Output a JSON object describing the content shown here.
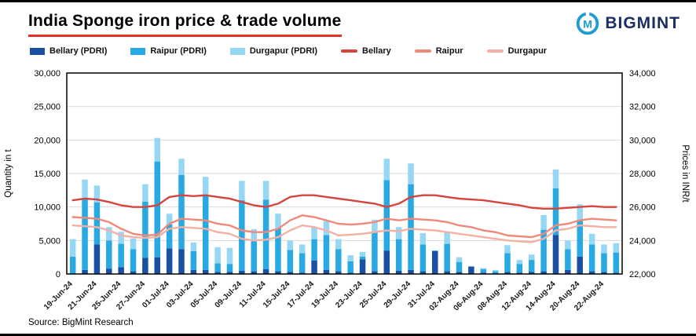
{
  "header": {
    "title": "India Sponge iron price & trade volume",
    "logo_text": "BIGMINT"
  },
  "source": "Source: BigMint Research",
  "colors": {
    "title_underline": "#e23328",
    "logo_teal": "#1e9cd0",
    "logo_navy": "#1b2f63",
    "gridline": "#d9d9d9",
    "plot_border": "#000000"
  },
  "chart_data": {
    "type": "combo",
    "title": "India Sponge iron price & trade volume",
    "grid": "horizontal",
    "legend_position": "top",
    "left_axis": {
      "title": "Quantity in t",
      "min": 0,
      "max": 30000,
      "step": 5000
    },
    "right_axis": {
      "title": "Prices in INR/t",
      "min": 22000,
      "max": 34000,
      "step": 2000
    },
    "tick_labels": [
      "19-Jun-24",
      "21-Jun-24",
      "25-Jun-24",
      "27-Jun-24",
      "01-Jul-24",
      "03-Jul-24",
      "05-Jul-24",
      "09-Jul-24",
      "11-Jul-24",
      "15-Jul-24",
      "17-Jul-24",
      "19-Jul-24",
      "23-Jul-24",
      "25-Jul-24",
      "29-Jul-24",
      "31-Jul-24",
      "02-Aug-24",
      "06-Aug-24",
      "08-Aug-24",
      "12-Aug-24",
      "14-Aug-24",
      "20-Aug-24",
      "22-Aug-24"
    ],
    "bars": {
      "stacked": true,
      "axis": "left",
      "series": [
        {
          "name": "Bellary (PDRI)",
          "color": "#1b4fa0",
          "values": [
            0,
            600,
            4400,
            800,
            1000,
            400,
            2400,
            2500,
            3800,
            3700,
            600,
            600,
            300,
            300,
            500,
            400,
            700,
            400,
            300,
            200,
            2000,
            600,
            400,
            200,
            2200,
            400,
            3500,
            500,
            600,
            400,
            3400,
            400,
            300,
            1100,
            200,
            100,
            300,
            200,
            300,
            400,
            5800,
            600,
            2600,
            400,
            300,
            200
          ]
        },
        {
          "name": "Raipur (PDRI)",
          "color": "#29a9e1",
          "values": [
            2600,
            10500,
            6300,
            4200,
            3500,
            3300,
            8400,
            14300,
            3600,
            11100,
            2800,
            11100,
            1300,
            1200,
            10500,
            4500,
            10400,
            6400,
            3300,
            2900,
            3200,
            5200,
            3300,
            1700,
            400,
            5800,
            10500,
            4700,
            12800,
            4000,
            100,
            4100,
            1500,
            0,
            500,
            300,
            2800,
            1300,
            1800,
            6200,
            7000,
            3100,
            5500,
            4000,
            2800,
            3000
          ]
        },
        {
          "name": "Durgapur (PDRI)",
          "color": "#96d7f4",
          "values": [
            2600,
            3000,
            2500,
            2000,
            1800,
            1600,
            2600,
            3500,
            1600,
            2400,
            1300,
            2800,
            2400,
            2400,
            2900,
            1800,
            2800,
            2200,
            1400,
            1300,
            1700,
            2100,
            1500,
            900,
            700,
            1900,
            3200,
            1800,
            3100,
            1700,
            0,
            1800,
            700,
            100,
            200,
            200,
            1200,
            600,
            800,
            2200,
            2800,
            1300,
            2300,
            1600,
            1300,
            1400
          ]
        }
      ]
    },
    "lines": {
      "axis": "right",
      "series": [
        {
          "name": "Bellary",
          "color": "#d6453d",
          "values": [
            26400,
            26500,
            26450,
            26300,
            26100,
            26000,
            26000,
            26100,
            26600,
            26700,
            26650,
            26700,
            26600,
            26500,
            26300,
            26100,
            26000,
            26200,
            26600,
            26700,
            26700,
            26600,
            26500,
            26400,
            26300,
            26200,
            26000,
            26200,
            26600,
            26700,
            26700,
            26600,
            26500,
            26450,
            26400,
            26300,
            26200,
            26100,
            25950,
            25900,
            25900,
            25950,
            26000,
            26050,
            26000,
            26000
          ]
        },
        {
          "name": "Raipur",
          "color": "#f0897a",
          "values": [
            25400,
            25350,
            25300,
            25100,
            24700,
            24400,
            24300,
            24350,
            25000,
            25300,
            25250,
            25200,
            25000,
            24900,
            24600,
            24500,
            24500,
            24700,
            25200,
            25500,
            25400,
            25200,
            25000,
            24950,
            25000,
            25100,
            25300,
            25200,
            25300,
            25250,
            25200,
            25100,
            24900,
            24800,
            24600,
            24500,
            24300,
            24250,
            24200,
            24400,
            24900,
            25000,
            25200,
            25300,
            25250,
            25200
          ]
        },
        {
          "name": "Durgapur",
          "color": "#f4b0a5",
          "values": [
            24900,
            24850,
            24800,
            24600,
            24300,
            24200,
            24150,
            24200,
            24700,
            24800,
            24750,
            24700,
            24500,
            24400,
            24100,
            24000,
            24050,
            24200,
            24600,
            24900,
            24800,
            24600,
            24300,
            24350,
            24400,
            24500,
            24600,
            24550,
            24700,
            24650,
            24600,
            24500,
            24400,
            24300,
            24200,
            24100,
            24000,
            23950,
            23900,
            24100,
            24600,
            24700,
            24900,
            24850,
            24800,
            24800
          ]
        }
      ]
    }
  }
}
